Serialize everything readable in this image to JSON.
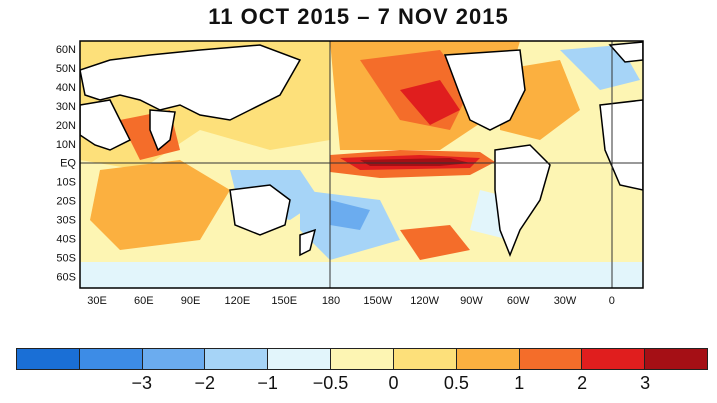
{
  "title": "11 OCT 2015 – 7 NOV 2015",
  "lat_labels": [
    "60N",
    "50N",
    "40N",
    "30N",
    "20N",
    "10N",
    "EQ",
    "10S",
    "20S",
    "30S",
    "40S",
    "50S",
    "60S"
  ],
  "lon_labels": [
    "30E",
    "60E",
    "90E",
    "120E",
    "150E",
    "180",
    "150W",
    "120W",
    "90W",
    "60W",
    "30W",
    "0"
  ],
  "colorbar": {
    "colors": [
      "#1a6fd6",
      "#3d8ce6",
      "#6bacef",
      "#a6d4f7",
      "#e2f5fb",
      "#fdf5b3",
      "#fde07a",
      "#fbb040",
      "#f46d2a",
      "#e01e1e",
      "#a50f15"
    ],
    "labels": [
      "−3",
      "−2",
      "−1",
      "−0.5",
      "0",
      "0.5",
      "1",
      "2",
      "3"
    ]
  }
}
